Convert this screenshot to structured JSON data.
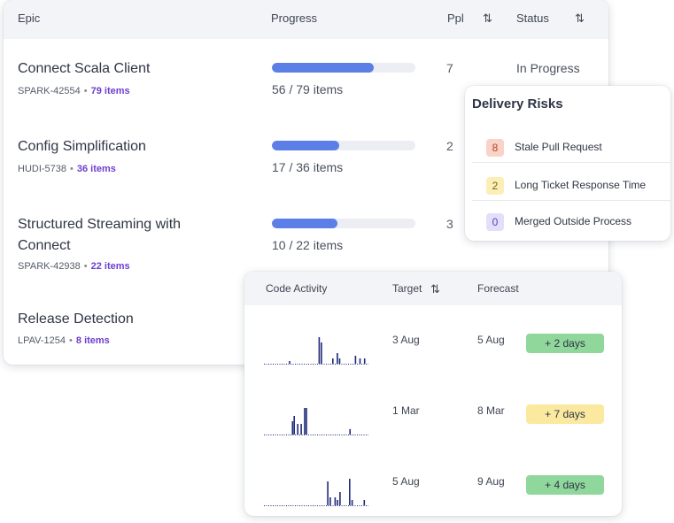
{
  "epic_table": {
    "headers": {
      "epic": "Epic",
      "progress": "Progress",
      "ppl": "Ppl",
      "status": "Status",
      "sort_icon": "⇅"
    },
    "rows": [
      {
        "title": "Connect Scala Client",
        "key": "SPARK-42554",
        "items": "79 items",
        "progress_text": "56 / 79 items",
        "progress_fraction": 0.709,
        "ppl": "7",
        "status": "In Progress"
      },
      {
        "title": "Config Simplification",
        "key": "HUDI-5738",
        "items": "36 items",
        "progress_text": "17 / 36 items",
        "progress_fraction": 0.472,
        "ppl": "2",
        "status": ""
      },
      {
        "title": "Structured Streaming with Connect",
        "key": "SPARK-42938",
        "items": "22 items",
        "progress_text": "10 / 22 items",
        "progress_fraction": 0.455,
        "ppl": "3",
        "status": ""
      },
      {
        "title": "Release Detection",
        "key": "LPAV-1254",
        "items": "8 items",
        "progress_text": "",
        "progress_fraction": null,
        "ppl": "",
        "status": ""
      }
    ]
  },
  "delivery_risks": {
    "title": "Delivery Risks",
    "items": [
      {
        "count": "8",
        "label": "Stale Pull Request",
        "color": "#f9d3c7",
        "text_color": "#b8432a"
      },
      {
        "count": "2",
        "label": "Long Ticket Response Time",
        "color": "#fbefb7",
        "text_color": "#7a6410"
      },
      {
        "count": "0",
        "label": "Merged Outside Process",
        "color": "#e3defa",
        "text_color": "#5b3fb8"
      }
    ]
  },
  "code_activity": {
    "headers": {
      "activity": "Code Activity",
      "target": "Target",
      "forecast": "Forecast",
      "sort_icon": "⇅"
    },
    "rows": [
      {
        "target": "3 Aug",
        "forecast": "5 Aug",
        "delta": "+ 2 days",
        "delta_color": "#8fd79b",
        "spark": [
          0,
          0,
          0,
          0,
          0,
          0,
          0,
          0,
          0,
          0,
          0,
          1,
          0,
          0,
          0,
          0,
          0,
          0,
          0,
          0,
          0,
          0,
          0,
          0,
          10,
          8,
          0,
          0,
          0,
          0,
          2,
          0,
          4,
          2,
          0,
          0,
          0,
          0,
          0,
          0,
          3,
          0,
          2,
          0,
          2,
          0
        ]
      },
      {
        "target": "1 Mar",
        "forecast": "8 Mar",
        "delta": "+ 7 days",
        "delta_color": "#fbe9a0",
        "spark": [
          0,
          0,
          0,
          0,
          0,
          0,
          0,
          0,
          0,
          0,
          0,
          0,
          0,
          0,
          0,
          0,
          5,
          7,
          0,
          4,
          0,
          4,
          0,
          10,
          10,
          0,
          0,
          0,
          0,
          0,
          0,
          0,
          0,
          0,
          0,
          0,
          0,
          0,
          0,
          0,
          0,
          0,
          0,
          0,
          0,
          0,
          0,
          0,
          0,
          2,
          0,
          0,
          0,
          0,
          0,
          0,
          0,
          0,
          0,
          0
        ]
      },
      {
        "target": "5 Aug",
        "forecast": "9 Aug",
        "delta": "+ 4 days",
        "delta_color": "#8fd79b",
        "spark": [
          0,
          0,
          0,
          0,
          0,
          0,
          0,
          0,
          0,
          0,
          0,
          0,
          0,
          0,
          0,
          0,
          0,
          0,
          0,
          0,
          0,
          0,
          0,
          0,
          0,
          0,
          9,
          3,
          0,
          3,
          2,
          5,
          0,
          0,
          0,
          10,
          2,
          0,
          0,
          0,
          0,
          2,
          0
        ]
      }
    ]
  },
  "colors": {
    "accent": "#5b7fe6",
    "link": "#6e3fd0",
    "spark": "#1e2a78"
  }
}
